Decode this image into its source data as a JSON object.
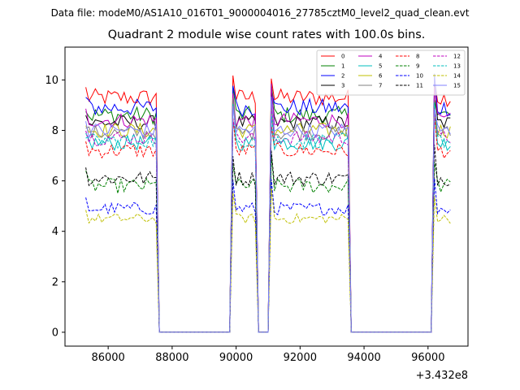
{
  "suptitle": "Data file: modeM0/AS1A10_016T01_9000004016_27785cztM0_level2_quad_clean.evt",
  "chart_data": {
    "type": "line",
    "title": "Quadrant 2 module wise count rates with 100.0s bins.",
    "xlabel": "",
    "ylabel": "",
    "x_offset_label": "+3.432e8",
    "xlim": [
      84650,
      97250
    ],
    "ylim": [
      -0.55,
      11.3
    ],
    "x_ticks": [
      86000,
      88000,
      90000,
      92000,
      94000,
      96000
    ],
    "x_tick_labels": [
      "86000",
      "88000",
      "90000",
      "92000",
      "94000",
      "96000"
    ],
    "y_ticks": [
      0,
      2,
      4,
      6,
      8,
      10
    ],
    "y_tick_labels": [
      "0",
      "2",
      "4",
      "6",
      "8",
      "10"
    ],
    "legend_position": "top-right",
    "x_segments": [
      {
        "start": 85300,
        "end": 87500,
        "step": 100
      },
      {
        "start": 89900,
        "end": 90600,
        "step": 100
      },
      {
        "start": 91100,
        "end": 93500,
        "step": 100
      },
      {
        "start": 96200,
        "end": 96700,
        "step": 100
      }
    ],
    "series": [
      {
        "name": "0",
        "color": "#ff0000",
        "dash": "solid",
        "level": 9.3,
        "noise": 0.35
      },
      {
        "name": "1",
        "color": "#008000",
        "dash": "solid",
        "level": 8.6,
        "noise": 0.35
      },
      {
        "name": "2",
        "color": "#0000ff",
        "dash": "solid",
        "level": 8.9,
        "noise": 0.35
      },
      {
        "name": "3",
        "color": "#000000",
        "dash": "solid",
        "level": 8.3,
        "noise": 0.3
      },
      {
        "name": "4",
        "color": "#bf00bf",
        "dash": "solid",
        "level": 8.4,
        "noise": 0.3
      },
      {
        "name": "5",
        "color": "#00bfbf",
        "dash": "solid",
        "level": 7.5,
        "noise": 0.3
      },
      {
        "name": "6",
        "color": "#bfbf00",
        "dash": "solid",
        "level": 8.0,
        "noise": 0.3
      },
      {
        "name": "7",
        "color": "#808080",
        "dash": "solid",
        "level": 7.9,
        "noise": 0.3
      },
      {
        "name": "8",
        "color": "#ff0000",
        "dash": "dashed",
        "level": 7.2,
        "noise": 0.3
      },
      {
        "name": "9",
        "color": "#008000",
        "dash": "dashed",
        "level": 5.8,
        "noise": 0.3
      },
      {
        "name": "10",
        "color": "#0000ff",
        "dash": "dashed",
        "level": 4.9,
        "noise": 0.25
      },
      {
        "name": "11",
        "color": "#000000",
        "dash": "dashed",
        "level": 6.1,
        "noise": 0.3
      },
      {
        "name": "12",
        "color": "#bf00bf",
        "dash": "dashed",
        "level": 7.7,
        "noise": 0.3
      },
      {
        "name": "13",
        "color": "#00bfbf",
        "dash": "dashed",
        "level": 7.6,
        "noise": 0.3
      },
      {
        "name": "14",
        "color": "#bfbf00",
        "dash": "dashed",
        "level": 4.5,
        "noise": 0.2
      },
      {
        "name": "15",
        "color": "#8080ff",
        "dash": "solid",
        "level": 8.0,
        "noise": 0.3
      }
    ]
  }
}
